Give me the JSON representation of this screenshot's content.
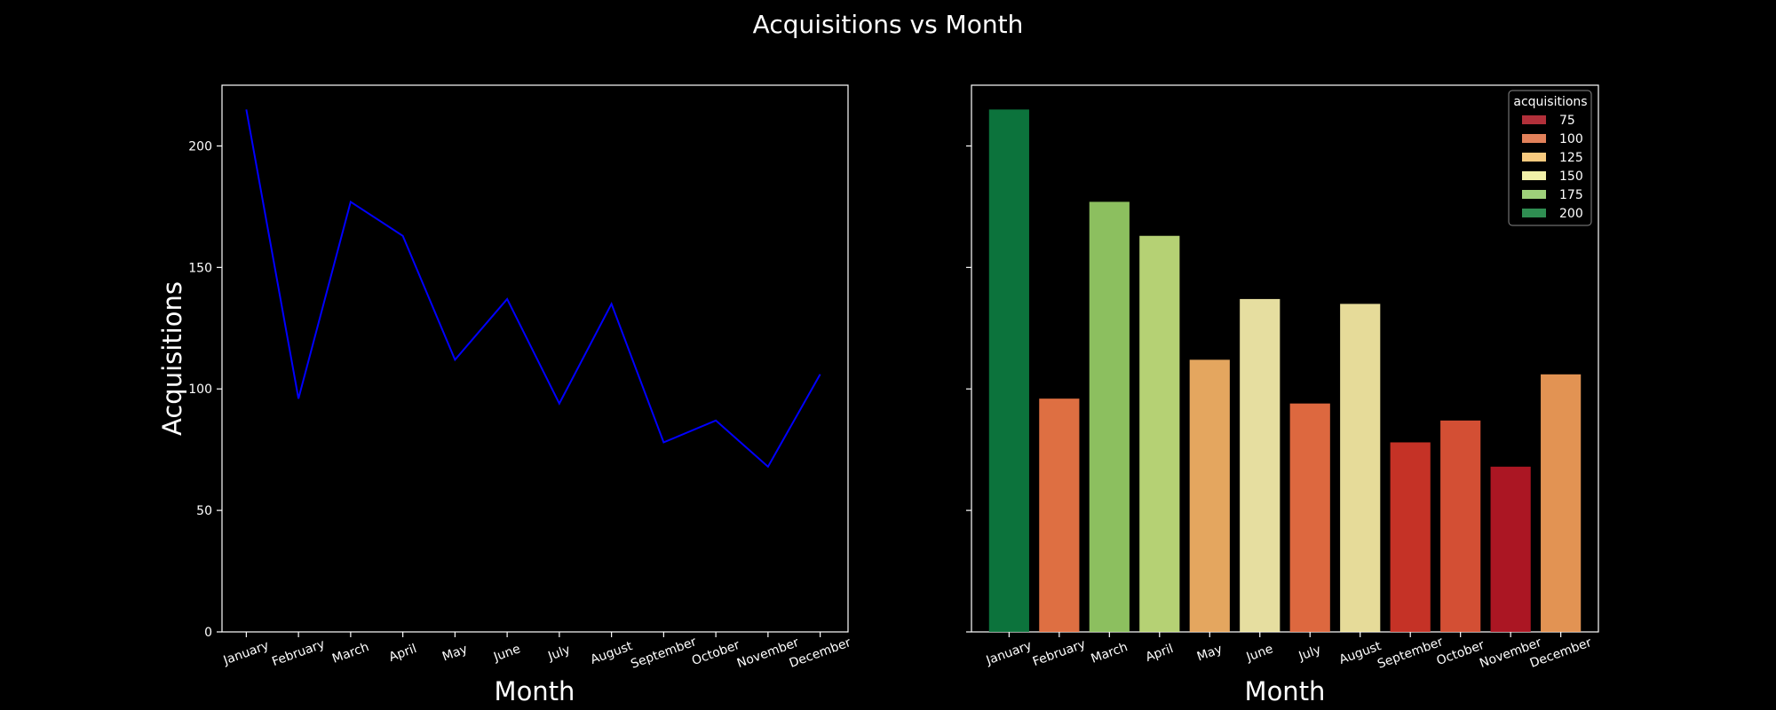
{
  "figure": {
    "title": "Acquisitions vs Month",
    "background": "#000000",
    "foreground": "#ffffff"
  },
  "chart_data": [
    {
      "type": "line",
      "categories": [
        "January",
        "February",
        "March",
        "April",
        "May",
        "June",
        "July",
        "August",
        "September",
        "October",
        "November",
        "December"
      ],
      "series": [
        {
          "values": [
            215,
            96,
            177,
            163,
            112,
            137,
            94,
            135,
            78,
            87,
            68,
            106
          ],
          "color": "#0000ff"
        }
      ],
      "xlabel": "Month",
      "ylabel": "Acquisitions",
      "ylim": [
        0,
        225
      ],
      "yticks": [
        0,
        50,
        100,
        150,
        200
      ],
      "grid": false
    },
    {
      "type": "bar",
      "categories": [
        "January",
        "February",
        "March",
        "April",
        "May",
        "June",
        "July",
        "August",
        "September",
        "October",
        "November",
        "December"
      ],
      "values": [
        215,
        96,
        177,
        163,
        112,
        137,
        94,
        135,
        78,
        87,
        68,
        106
      ],
      "xlabel": "Month",
      "ylabel": "",
      "ylim": [
        0,
        225
      ],
      "yticks": [
        0,
        50,
        100,
        150,
        200
      ],
      "show_ytick_labels": false,
      "colormap": "RdYlGn",
      "legend": {
        "title": "acquisitions",
        "location": "top-right",
        "entries": [
          {
            "label": "75",
            "color": "#b2303a"
          },
          {
            "label": "100",
            "color": "#e2815a"
          },
          {
            "label": "125",
            "color": "#f7ca7f"
          },
          {
            "label": "150",
            "color": "#f1f0a8"
          },
          {
            "label": "175",
            "color": "#9ed07a"
          },
          {
            "label": "200",
            "color": "#2f8e52"
          }
        ]
      },
      "grid": false
    }
  ]
}
